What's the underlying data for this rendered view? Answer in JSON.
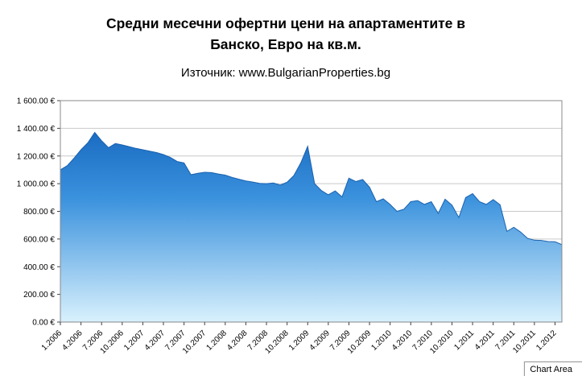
{
  "title": {
    "line1": "Средни месечни офертни цени на апартаментите в",
    "line2": "Банско, Евро на кв.м."
  },
  "subtitle": "Източник: www.BulgarianProperties.bg",
  "tooltip": {
    "label": "Chart Area"
  },
  "chart_data": {
    "type": "area",
    "title": "Средни месечни офертни цени на апартаментите в Банско, Евро на кв.м.",
    "source": "Източник: www.BulgarianProperties.bg",
    "grid": true,
    "legend": false,
    "ylim": [
      0,
      1600
    ],
    "y_step": 200,
    "y_tick_labels": [
      "0.00 €",
      "200.00 €",
      "400.00 €",
      "600.00 €",
      "800.00 €",
      "1 000.00 €",
      "1 200.00 €",
      "1 400.00 €",
      "1 600.00 €"
    ],
    "x_tick_labels": [
      "1.2006",
      "4.2006",
      "7.2006",
      "10.2006",
      "1.2007",
      "4.2007",
      "7.2007",
      "10.2007",
      "1.2008",
      "4.2008",
      "7.2008",
      "10.2008",
      "1.2009",
      "4.2009",
      "7.2009",
      "10.2009",
      "1.2010",
      "4.2010",
      "7.2010",
      "10.2010",
      "1.2011",
      "4.2011",
      "7.2011",
      "10.2011",
      "1.2012"
    ],
    "x_tick_every": 3,
    "categories": [
      "1.2006",
      "2.2006",
      "3.2006",
      "4.2006",
      "5.2006",
      "6.2006",
      "7.2006",
      "8.2006",
      "9.2006",
      "10.2006",
      "11.2006",
      "12.2006",
      "1.2007",
      "2.2007",
      "3.2007",
      "4.2007",
      "5.2007",
      "6.2007",
      "7.2007",
      "8.2007",
      "9.2007",
      "10.2007",
      "11.2007",
      "12.2007",
      "1.2008",
      "2.2008",
      "3.2008",
      "4.2008",
      "5.2008",
      "6.2008",
      "7.2008",
      "8.2008",
      "9.2008",
      "10.2008",
      "11.2008",
      "12.2008",
      "1.2009",
      "2.2009",
      "3.2009",
      "4.2009",
      "5.2009",
      "6.2009",
      "7.2009",
      "8.2009",
      "9.2009",
      "10.2009",
      "11.2009",
      "12.2009",
      "1.2010",
      "2.2010",
      "3.2010",
      "4.2010",
      "5.2010",
      "6.2010",
      "7.2010",
      "8.2010",
      "9.2010",
      "10.2010",
      "11.2010",
      "12.2010",
      "1.2011",
      "2.2011",
      "3.2011",
      "4.2011",
      "5.2011",
      "6.2011",
      "7.2011",
      "8.2011",
      "9.2011",
      "10.2011",
      "11.2011",
      "12.2011",
      "1.2012",
      "2.2012"
    ],
    "values": [
      1100,
      1130,
      1185,
      1245,
      1295,
      1370,
      1310,
      1260,
      1290,
      1280,
      1268,
      1255,
      1245,
      1235,
      1225,
      1210,
      1190,
      1160,
      1150,
      1065,
      1075,
      1082,
      1080,
      1070,
      1062,
      1045,
      1032,
      1020,
      1012,
      1002,
      1000,
      1005,
      990,
      1010,
      1060,
      1150,
      1270,
      1000,
      950,
      920,
      948,
      905,
      1040,
      1015,
      1030,
      975,
      870,
      890,
      850,
      800,
      815,
      870,
      878,
      850,
      870,
      785,
      888,
      845,
      755,
      900,
      928,
      870,
      850,
      885,
      848,
      655,
      685,
      650,
      605,
      592,
      590,
      582,
      580,
      560
    ],
    "colors": {
      "area_top": "#1a6cc2",
      "area_mid": "#3b92dd",
      "area_bottom": "#d9f1fd",
      "edge": "#1a61ae",
      "gridline": "#c9c9c9",
      "plot_border": "#888888",
      "axis": "#404040",
      "text": "#000000"
    }
  }
}
